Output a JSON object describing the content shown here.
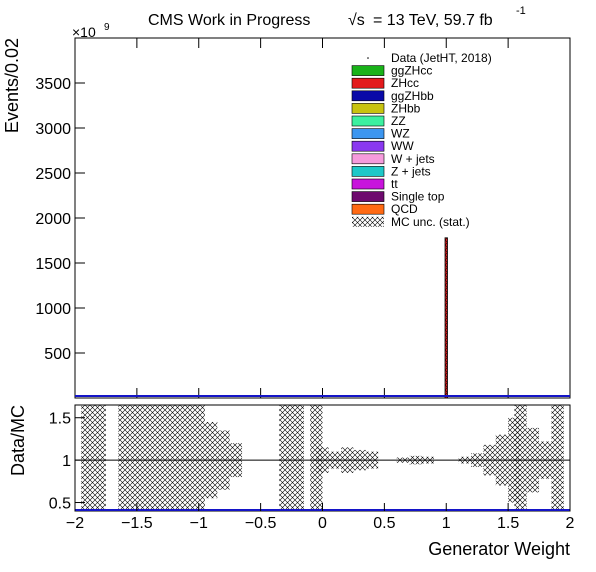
{
  "header": {
    "title": "CMS Work in Progress",
    "energy_symbol": "√s",
    "energy_text": "= 13 TeV, 59.7 fb",
    "lumi_exponent": "-1"
  },
  "chart_data": [
    {
      "type": "bar",
      "panel": "main",
      "ylabel": "Events/0.02",
      "y_multiplier_label": "×10",
      "y_multiplier_exponent": "9",
      "xlim": [
        -2,
        2
      ],
      "ylim": [
        0,
        4000
      ],
      "yticks": [
        500,
        1000,
        1500,
        2000,
        2500,
        3000,
        3500
      ],
      "ytick_labels": [
        "500",
        "1000",
        "1500",
        "2000",
        "2500",
        "3000",
        "3500"
      ],
      "bin_width": 0.02,
      "stack_bin": {
        "x_low": 0.99,
        "x_high": 1.01,
        "total": 1780
      },
      "legend_position": "top-right",
      "legend": [
        {
          "label": "Data (JetHT, 2018)",
          "kind": "data",
          "color": "#000000"
        },
        {
          "label": "ggZHcc",
          "kind": "fill",
          "color": "#19b219"
        },
        {
          "label": "ZHcc",
          "kind": "fill",
          "color": "#e31a1c"
        },
        {
          "label": "ggZHbb",
          "kind": "fill",
          "color": "#0a0aa8"
        },
        {
          "label": "ZHbb",
          "kind": "fill",
          "color": "#c8c310"
        },
        {
          "label": "ZZ",
          "kind": "fill",
          "color": "#3cf0a0"
        },
        {
          "label": "WZ",
          "kind": "fill",
          "color": "#3c96f0"
        },
        {
          "label": "WW",
          "kind": "fill",
          "color": "#8a38f0"
        },
        {
          "label": "W + jets",
          "kind": "fill",
          "color": "#f59bdc"
        },
        {
          "label": "Z + jets",
          "kind": "fill",
          "color": "#1ec8c8"
        },
        {
          "label": "tt",
          "kind": "fill",
          "color": "#c814dc"
        },
        {
          "label": "Single top",
          "kind": "fill",
          "color": "#6e0a6e"
        },
        {
          "label": "QCD",
          "kind": "fill",
          "color": "#ff6a14"
        },
        {
          "label": "MC unc. (stat.)",
          "kind": "hatch",
          "color": "#000000"
        }
      ],
      "stack_fill_color": "#e31a1c",
      "baseline_color": "#1414c8"
    },
    {
      "type": "area",
      "panel": "ratio",
      "ylabel": "Data/MC",
      "xlabel": "Generator Weight",
      "xlim": [
        -2,
        2
      ],
      "ylim": [
        0.4,
        1.65
      ],
      "yticks": [
        0.5,
        1,
        1.5
      ],
      "ytick_labels": [
        "0.5",
        "1",
        "1.5"
      ],
      "xticks": [
        -2,
        -1.5,
        -1,
        -0.5,
        0,
        0.5,
        1,
        1.5,
        2
      ],
      "xtick_labels": [
        "−2",
        "−1.5",
        "−1",
        "−0.5",
        "0",
        "0.5",
        "1",
        "1.5",
        "2"
      ],
      "reference_line": 1,
      "uncertainty_bands": [
        {
          "x": -1.9,
          "lo": 0.4,
          "hi": 1.65
        },
        {
          "x": -1.8,
          "lo": 0.4,
          "hi": 1.65
        },
        {
          "x": -1.6,
          "lo": 0.4,
          "hi": 1.65
        },
        {
          "x": -1.5,
          "lo": 0.4,
          "hi": 1.65
        },
        {
          "x": -1.4,
          "lo": 0.4,
          "hi": 1.65
        },
        {
          "x": -1.3,
          "lo": 0.4,
          "hi": 1.65
        },
        {
          "x": -1.2,
          "lo": 0.4,
          "hi": 1.65
        },
        {
          "x": -1.1,
          "lo": 0.4,
          "hi": 1.65
        },
        {
          "x": -1.0,
          "lo": 0.4,
          "hi": 1.65
        },
        {
          "x": -0.9,
          "lo": 0.55,
          "hi": 1.45
        },
        {
          "x": -0.8,
          "lo": 0.65,
          "hi": 1.35
        },
        {
          "x": -0.7,
          "lo": 0.8,
          "hi": 1.2
        },
        {
          "x": -0.3,
          "lo": 0.4,
          "hi": 1.65
        },
        {
          "x": -0.2,
          "lo": 0.4,
          "hi": 1.65
        },
        {
          "x": -0.05,
          "lo": 0.4,
          "hi": 1.65
        },
        {
          "x": 0.0,
          "lo": 0.85,
          "hi": 1.15
        },
        {
          "x": 0.1,
          "lo": 0.9,
          "hi": 1.1
        },
        {
          "x": 0.2,
          "lo": 0.85,
          "hi": 1.15
        },
        {
          "x": 0.3,
          "lo": 0.88,
          "hi": 1.12
        },
        {
          "x": 0.4,
          "lo": 0.9,
          "hi": 1.1
        },
        {
          "x": 0.65,
          "lo": 0.97,
          "hi": 1.03
        },
        {
          "x": 0.75,
          "lo": 0.95,
          "hi": 1.05
        },
        {
          "x": 0.85,
          "lo": 0.96,
          "hi": 1.04
        },
        {
          "x": 1.15,
          "lo": 0.96,
          "hi": 1.04
        },
        {
          "x": 1.25,
          "lo": 0.92,
          "hi": 1.08
        },
        {
          "x": 1.35,
          "lo": 0.82,
          "hi": 1.18
        },
        {
          "x": 1.45,
          "lo": 0.7,
          "hi": 1.3
        },
        {
          "x": 1.55,
          "lo": 0.5,
          "hi": 1.5
        },
        {
          "x": 1.6,
          "lo": 0.4,
          "hi": 1.65
        },
        {
          "x": 1.7,
          "lo": 0.62,
          "hi": 1.38
        },
        {
          "x": 1.8,
          "lo": 0.78,
          "hi": 1.22
        },
        {
          "x": 1.9,
          "lo": 0.4,
          "hi": 1.65
        }
      ]
    }
  ]
}
